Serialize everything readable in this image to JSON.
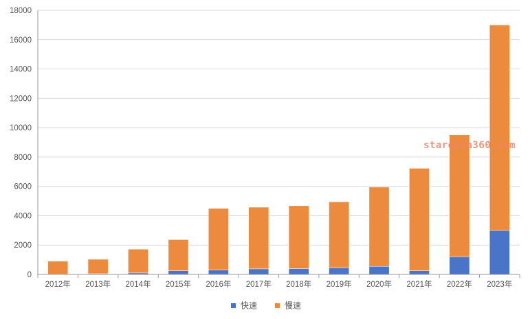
{
  "watermark": "stardata360.com",
  "chart_data": {
    "type": "bar",
    "stacked": true,
    "categories": [
      "2012年",
      "2013年",
      "2014年",
      "2015年",
      "2016年",
      "2017年",
      "2018年",
      "2019年",
      "2020年",
      "2021年",
      "2022年",
      "2023年"
    ],
    "series": [
      {
        "name": "快速",
        "color": "#4a74c7",
        "values": [
          20,
          50,
          100,
          250,
          300,
          380,
          400,
          450,
          550,
          250,
          1200,
          3000
        ]
      },
      {
        "name": "慢速",
        "color": "#ec8b3e",
        "values": [
          880,
          980,
          1620,
          2120,
          4200,
          4200,
          4280,
          4500,
          5400,
          6980,
          8300,
          14000
        ]
      }
    ],
    "ylim": [
      0,
      18000
    ],
    "yticks": [
      0,
      2000,
      4000,
      6000,
      8000,
      10000,
      12000,
      14000,
      16000,
      18000
    ],
    "grid": true,
    "legend_position": "bottom-center",
    "title": "",
    "xlabel": "",
    "ylabel": ""
  }
}
